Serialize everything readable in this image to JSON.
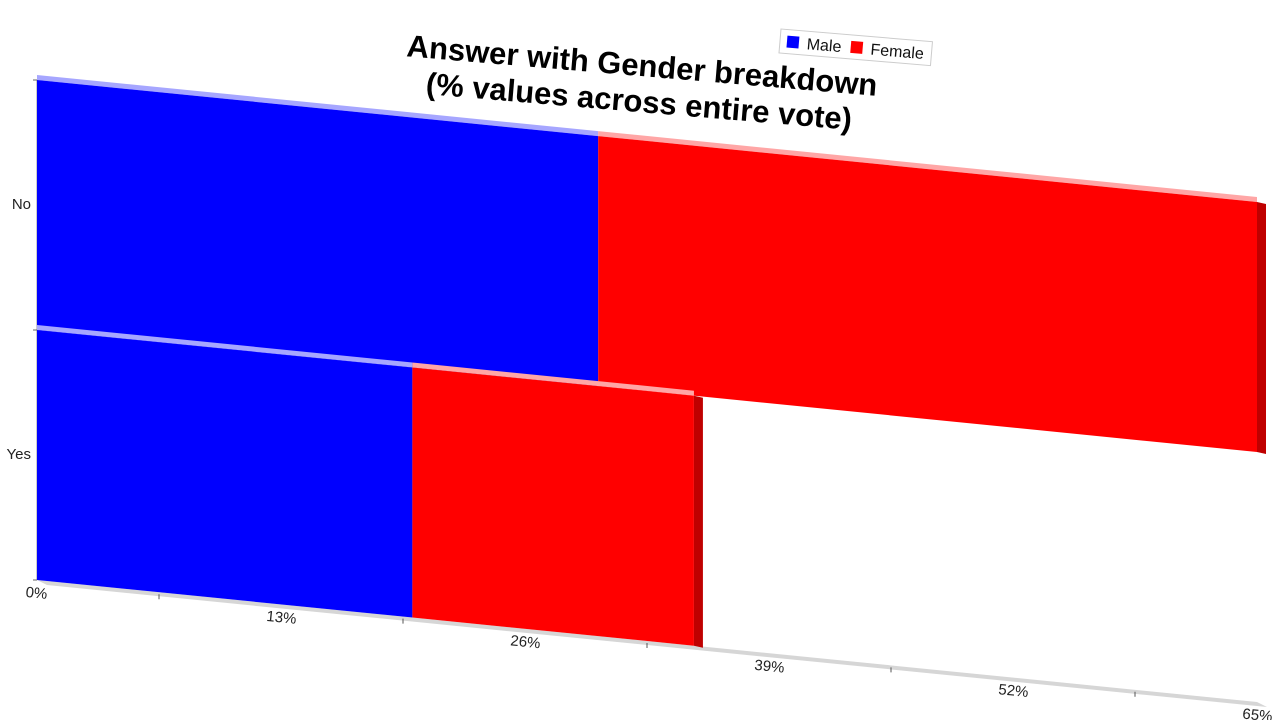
{
  "chart_data": {
    "type": "bar",
    "orientation": "horizontal",
    "stacked": true,
    "title_lines": [
      "Answer with Gender breakdown",
      "(% values across entire vote)"
    ],
    "categories": [
      "No",
      "Yes"
    ],
    "series": [
      {
        "name": "Male",
        "color": "#0000ff",
        "values": [
          29.9,
          20.0
        ]
      },
      {
        "name": "Female",
        "color": "#ff0000",
        "values": [
          35.1,
          15.0
        ]
      }
    ],
    "x_ticks": [
      "0%",
      "13%",
      "26%",
      "39%",
      "52%",
      "65%"
    ],
    "xlim": [
      0,
      65
    ],
    "legend_position": "top",
    "grid": false
  }
}
